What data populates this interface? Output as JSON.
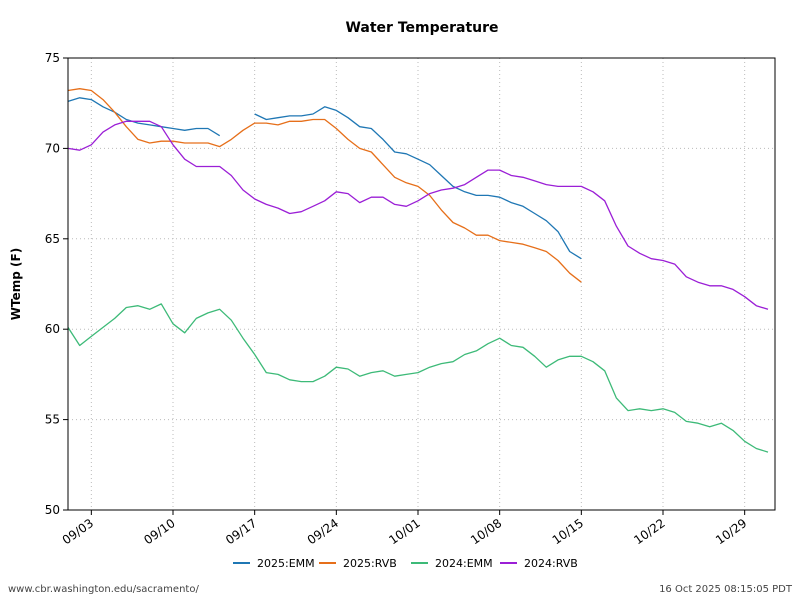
{
  "chart_data": {
    "type": "line",
    "title": "Water Temperature",
    "xlabel": "",
    "ylabel": "WTemp (F)",
    "ylim": [
      50,
      75
    ],
    "yticks": [
      50,
      55,
      60,
      65,
      70,
      75
    ],
    "x_start": "09/01",
    "xlim_days": [
      0,
      60.6
    ],
    "xticks": [
      {
        "label": "09/03",
        "day": 2
      },
      {
        "label": "09/10",
        "day": 9
      },
      {
        "label": "09/17",
        "day": 16
      },
      {
        "label": "09/24",
        "day": 23
      },
      {
        "label": "10/01",
        "day": 30
      },
      {
        "label": "10/08",
        "day": 37
      },
      {
        "label": "10/15",
        "day": 44
      },
      {
        "label": "10/22",
        "day": 51
      },
      {
        "label": "10/29",
        "day": 58
      }
    ],
    "grid": true,
    "legend_position": "bottom-center",
    "series": [
      {
        "name": "2025:EMM",
        "color": "#1f77b4",
        "segments": [
          {
            "start_day": 0,
            "values": [
              72.6,
              72.8,
              72.7,
              72.3,
              72.0,
              71.6,
              71.4,
              71.3,
              71.2,
              71.1,
              71.0,
              71.1,
              71.1,
              70.7
            ]
          },
          {
            "start_day": 16,
            "values": [
              71.9,
              71.6,
              71.7,
              71.8,
              71.8,
              71.9,
              72.3,
              72.1,
              71.7,
              71.2,
              71.1,
              70.5,
              69.8,
              69.7,
              69.4,
              69.1,
              68.5,
              67.9,
              67.6,
              67.4,
              67.4,
              67.3,
              67.0,
              66.8,
              66.4,
              66.0,
              65.4,
              64.3,
              63.9
            ]
          }
        ]
      },
      {
        "name": "2025:RVB",
        "color": "#e66f1a",
        "segments": [
          {
            "start_day": 0,
            "values": [
              73.2,
              73.3,
              73.2,
              72.7,
              72.0,
              71.2,
              70.5,
              70.3,
              70.4,
              70.4,
              70.3,
              70.3,
              70.3,
              70.1,
              70.5,
              71.0,
              71.4,
              71.4,
              71.3,
              71.5,
              71.5,
              71.6,
              71.6,
              71.1,
              70.5,
              70.0,
              69.8,
              69.1,
              68.4,
              68.1,
              67.9,
              67.4,
              66.6,
              65.9,
              65.6,
              65.2,
              65.2,
              64.9,
              64.8,
              64.7,
              64.5,
              64.3,
              63.8,
              63.1,
              62.6
            ]
          }
        ]
      },
      {
        "name": "2024:EMM",
        "color": "#3dba78",
        "segments": [
          {
            "start_day": 0,
            "values": [
              60.1,
              59.1,
              59.6,
              60.1,
              60.6,
              61.2,
              61.3,
              61.1,
              61.4,
              60.3,
              59.8,
              60.6,
              60.9,
              61.1,
              60.5,
              59.5,
              58.6,
              57.6,
              57.5,
              57.2,
              57.1,
              57.1,
              57.4,
              57.9,
              57.8,
              57.4,
              57.6,
              57.7,
              57.4,
              57.5,
              57.6,
              57.9,
              58.1,
              58.2,
              58.6,
              58.8,
              59.2,
              59.5,
              59.1,
              59.0,
              58.5,
              57.9,
              58.3,
              58.5,
              58.5,
              58.2,
              57.7,
              56.2,
              55.5,
              55.6,
              55.5,
              55.6,
              55.4,
              54.9,
              54.8,
              54.6,
              54.8,
              54.4,
              53.8,
              53.4,
              53.2
            ]
          }
        ]
      },
      {
        "name": "2024:RVB",
        "color": "#9b1fd6",
        "segments": [
          {
            "start_day": 0,
            "values": [
              70.0,
              69.9,
              70.2,
              70.9,
              71.3,
              71.5,
              71.5,
              71.5,
              71.2,
              70.2,
              69.4,
              69.0,
              69.0,
              69.0,
              68.5,
              67.7,
              67.2,
              66.9,
              66.7,
              66.4,
              66.5,
              66.8,
              67.1,
              67.6,
              67.5,
              67.0,
              67.3,
              67.3,
              66.9,
              66.8,
              67.1,
              67.5,
              67.7,
              67.8,
              68.0,
              68.4,
              68.8,
              68.8,
              68.5,
              68.4,
              68.2,
              68.0,
              67.9,
              67.9,
              67.9,
              67.6,
              67.1,
              65.7,
              64.6,
              64.2,
              63.9,
              63.8,
              63.6,
              62.9,
              62.6,
              62.4,
              62.4,
              62.2,
              61.8,
              61.3,
              61.1
            ]
          }
        ]
      }
    ]
  },
  "footer": {
    "source": "www.cbr.washington.edu/sacramento/",
    "timestamp": "16 Oct 2025 08:15:05 PDT"
  }
}
